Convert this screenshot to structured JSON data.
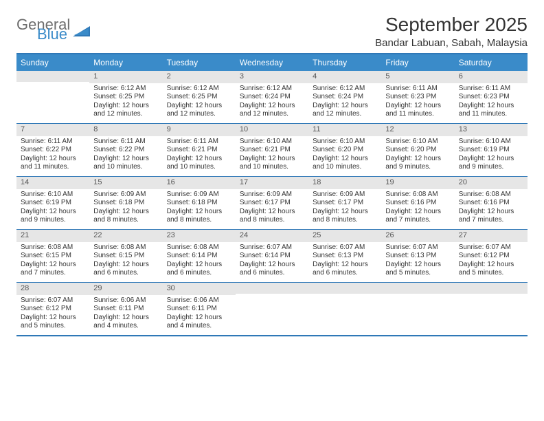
{
  "logo": {
    "text1": "General",
    "text2": "Blue",
    "accent_color": "#3a8bc9",
    "gray": "#6d6d6d"
  },
  "title": "September 2025",
  "location": "Bandar Labuan, Sabah, Malaysia",
  "colors": {
    "header_bg": "#3a8bc9",
    "header_text": "#ffffff",
    "border": "#2f78b7",
    "daynum_bg": "#e6e6e6",
    "text": "#333333"
  },
  "day_names": [
    "Sunday",
    "Monday",
    "Tuesday",
    "Wednesday",
    "Thursday",
    "Friday",
    "Saturday"
  ],
  "weeks": [
    [
      {
        "n": "",
        "sr": "",
        "ss": "",
        "dl": ""
      },
      {
        "n": "1",
        "sr": "Sunrise: 6:12 AM",
        "ss": "Sunset: 6:25 PM",
        "dl": "Daylight: 12 hours and 12 minutes."
      },
      {
        "n": "2",
        "sr": "Sunrise: 6:12 AM",
        "ss": "Sunset: 6:25 PM",
        "dl": "Daylight: 12 hours and 12 minutes."
      },
      {
        "n": "3",
        "sr": "Sunrise: 6:12 AM",
        "ss": "Sunset: 6:24 PM",
        "dl": "Daylight: 12 hours and 12 minutes."
      },
      {
        "n": "4",
        "sr": "Sunrise: 6:12 AM",
        "ss": "Sunset: 6:24 PM",
        "dl": "Daylight: 12 hours and 12 minutes."
      },
      {
        "n": "5",
        "sr": "Sunrise: 6:11 AM",
        "ss": "Sunset: 6:23 PM",
        "dl": "Daylight: 12 hours and 11 minutes."
      },
      {
        "n": "6",
        "sr": "Sunrise: 6:11 AM",
        "ss": "Sunset: 6:23 PM",
        "dl": "Daylight: 12 hours and 11 minutes."
      }
    ],
    [
      {
        "n": "7",
        "sr": "Sunrise: 6:11 AM",
        "ss": "Sunset: 6:22 PM",
        "dl": "Daylight: 12 hours and 11 minutes."
      },
      {
        "n": "8",
        "sr": "Sunrise: 6:11 AM",
        "ss": "Sunset: 6:22 PM",
        "dl": "Daylight: 12 hours and 10 minutes."
      },
      {
        "n": "9",
        "sr": "Sunrise: 6:11 AM",
        "ss": "Sunset: 6:21 PM",
        "dl": "Daylight: 12 hours and 10 minutes."
      },
      {
        "n": "10",
        "sr": "Sunrise: 6:10 AM",
        "ss": "Sunset: 6:21 PM",
        "dl": "Daylight: 12 hours and 10 minutes."
      },
      {
        "n": "11",
        "sr": "Sunrise: 6:10 AM",
        "ss": "Sunset: 6:20 PM",
        "dl": "Daylight: 12 hours and 10 minutes."
      },
      {
        "n": "12",
        "sr": "Sunrise: 6:10 AM",
        "ss": "Sunset: 6:20 PM",
        "dl": "Daylight: 12 hours and 9 minutes."
      },
      {
        "n": "13",
        "sr": "Sunrise: 6:10 AM",
        "ss": "Sunset: 6:19 PM",
        "dl": "Daylight: 12 hours and 9 minutes."
      }
    ],
    [
      {
        "n": "14",
        "sr": "Sunrise: 6:10 AM",
        "ss": "Sunset: 6:19 PM",
        "dl": "Daylight: 12 hours and 9 minutes."
      },
      {
        "n": "15",
        "sr": "Sunrise: 6:09 AM",
        "ss": "Sunset: 6:18 PM",
        "dl": "Daylight: 12 hours and 8 minutes."
      },
      {
        "n": "16",
        "sr": "Sunrise: 6:09 AM",
        "ss": "Sunset: 6:18 PM",
        "dl": "Daylight: 12 hours and 8 minutes."
      },
      {
        "n": "17",
        "sr": "Sunrise: 6:09 AM",
        "ss": "Sunset: 6:17 PM",
        "dl": "Daylight: 12 hours and 8 minutes."
      },
      {
        "n": "18",
        "sr": "Sunrise: 6:09 AM",
        "ss": "Sunset: 6:17 PM",
        "dl": "Daylight: 12 hours and 8 minutes."
      },
      {
        "n": "19",
        "sr": "Sunrise: 6:08 AM",
        "ss": "Sunset: 6:16 PM",
        "dl": "Daylight: 12 hours and 7 minutes."
      },
      {
        "n": "20",
        "sr": "Sunrise: 6:08 AM",
        "ss": "Sunset: 6:16 PM",
        "dl": "Daylight: 12 hours and 7 minutes."
      }
    ],
    [
      {
        "n": "21",
        "sr": "Sunrise: 6:08 AM",
        "ss": "Sunset: 6:15 PM",
        "dl": "Daylight: 12 hours and 7 minutes."
      },
      {
        "n": "22",
        "sr": "Sunrise: 6:08 AM",
        "ss": "Sunset: 6:15 PM",
        "dl": "Daylight: 12 hours and 6 minutes."
      },
      {
        "n": "23",
        "sr": "Sunrise: 6:08 AM",
        "ss": "Sunset: 6:14 PM",
        "dl": "Daylight: 12 hours and 6 minutes."
      },
      {
        "n": "24",
        "sr": "Sunrise: 6:07 AM",
        "ss": "Sunset: 6:14 PM",
        "dl": "Daylight: 12 hours and 6 minutes."
      },
      {
        "n": "25",
        "sr": "Sunrise: 6:07 AM",
        "ss": "Sunset: 6:13 PM",
        "dl": "Daylight: 12 hours and 6 minutes."
      },
      {
        "n": "26",
        "sr": "Sunrise: 6:07 AM",
        "ss": "Sunset: 6:13 PM",
        "dl": "Daylight: 12 hours and 5 minutes."
      },
      {
        "n": "27",
        "sr": "Sunrise: 6:07 AM",
        "ss": "Sunset: 6:12 PM",
        "dl": "Daylight: 12 hours and 5 minutes."
      }
    ],
    [
      {
        "n": "28",
        "sr": "Sunrise: 6:07 AM",
        "ss": "Sunset: 6:12 PM",
        "dl": "Daylight: 12 hours and 5 minutes."
      },
      {
        "n": "29",
        "sr": "Sunrise: 6:06 AM",
        "ss": "Sunset: 6:11 PM",
        "dl": "Daylight: 12 hours and 4 minutes."
      },
      {
        "n": "30",
        "sr": "Sunrise: 6:06 AM",
        "ss": "Sunset: 6:11 PM",
        "dl": "Daylight: 12 hours and 4 minutes."
      },
      {
        "n": "",
        "sr": "",
        "ss": "",
        "dl": ""
      },
      {
        "n": "",
        "sr": "",
        "ss": "",
        "dl": ""
      },
      {
        "n": "",
        "sr": "",
        "ss": "",
        "dl": ""
      },
      {
        "n": "",
        "sr": "",
        "ss": "",
        "dl": ""
      }
    ]
  ]
}
